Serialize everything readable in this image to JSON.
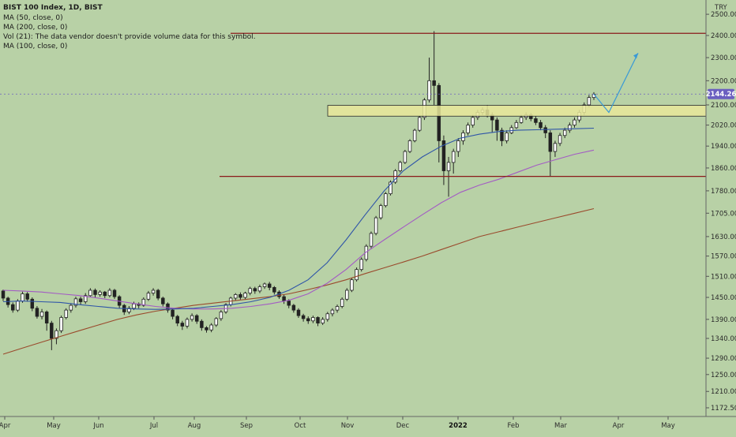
{
  "legend": {
    "symbol": "BIST 100 Index, 1D, BIST",
    "ma50": "MA (50, close, 0)",
    "ma200": "MA (200, close, 0)",
    "vol": "Vol (21): The data vendor doesn't provide volume data for this symbol.",
    "ma100": "MA (100, close, 0)"
  },
  "currency_label": "TRY",
  "colors": {
    "background": "#b8d1a6",
    "ma50": "#2f55a8",
    "ma100": "#a35bc4",
    "ma200": "#9a4a2c",
    "resistance": "#8b1a1a",
    "zone_fill": "#e8e89a",
    "zone_stroke": "#2a2a2a",
    "projection": "#3a9ad6",
    "price_badge": "#6b5fc0",
    "candle": "#222222"
  },
  "chart_data": {
    "type": "candlestick",
    "title": "BIST 100 Index, 1D, BIST",
    "currency": "TRY",
    "y_ticks": [
      "2500.00",
      "2400.00",
      "2300.00",
      "2200.00",
      "2100.00",
      "2020.00",
      "1940.00",
      "1860.00",
      "1780.00",
      "1705.00",
      "1630.00",
      "1570.00",
      "1510.00",
      "1450.00",
      "1390.00",
      "1340.00",
      "1290.00",
      "1250.00",
      "1210.00",
      "1172.50"
    ],
    "x_ticks": [
      {
        "label": "Apr",
        "bold": false
      },
      {
        "label": "May",
        "bold": false
      },
      {
        "label": "Jun",
        "bold": false
      },
      {
        "label": "Jul",
        "bold": false
      },
      {
        "label": "Aug",
        "bold": false
      },
      {
        "label": "Sep",
        "bold": false
      },
      {
        "label": "Oct",
        "bold": false
      },
      {
        "label": "Nov",
        "bold": false
      },
      {
        "label": "Dec",
        "bold": false
      },
      {
        "label": "2022",
        "bold": true
      },
      {
        "label": "Feb",
        "bold": false
      },
      {
        "label": "Mar",
        "bold": false
      },
      {
        "label": "Apr",
        "bold": false
      },
      {
        "label": "May",
        "bold": false
      }
    ],
    "last_price": "2144.26",
    "resistance_levels": [
      2410,
      1830
    ],
    "zone": [
      2055,
      2098
    ],
    "projection_points": [
      [
        2144,
        2144
      ],
      [
        2070,
        2070
      ],
      [
        2320,
        2320
      ]
    ],
    "candles": [
      [
        1468,
        1448,
        1472,
        1440
      ],
      [
        1448,
        1430,
        1452,
        1422
      ],
      [
        1430,
        1415,
        1436,
        1408
      ],
      [
        1415,
        1440,
        1445,
        1410
      ],
      [
        1440,
        1460,
        1466,
        1435
      ],
      [
        1460,
        1445,
        1465,
        1438
      ],
      [
        1445,
        1420,
        1450,
        1412
      ],
      [
        1420,
        1398,
        1426,
        1392
      ],
      [
        1398,
        1410,
        1418,
        1390
      ],
      [
        1410,
        1380,
        1414,
        1360
      ],
      [
        1380,
        1340,
        1386,
        1310
      ],
      [
        1340,
        1360,
        1366,
        1325
      ],
      [
        1360,
        1395,
        1400,
        1354
      ],
      [
        1395,
        1415,
        1420,
        1390
      ],
      [
        1415,
        1428,
        1434,
        1408
      ],
      [
        1428,
        1446,
        1452,
        1422
      ],
      [
        1446,
        1438,
        1452,
        1430
      ],
      [
        1438,
        1455,
        1462,
        1432
      ],
      [
        1455,
        1470,
        1476,
        1450
      ],
      [
        1470,
        1458,
        1475,
        1450
      ],
      [
        1458,
        1465,
        1470,
        1452
      ],
      [
        1465,
        1455,
        1468,
        1448
      ],
      [
        1455,
        1470,
        1476,
        1450
      ],
      [
        1470,
        1452,
        1474,
        1446
      ],
      [
        1452,
        1428,
        1456,
        1420
      ],
      [
        1428,
        1410,
        1432,
        1402
      ],
      [
        1410,
        1420,
        1426,
        1404
      ],
      [
        1420,
        1432,
        1438,
        1415
      ],
      [
        1432,
        1428,
        1436,
        1420
      ],
      [
        1428,
        1445,
        1450,
        1424
      ],
      [
        1445,
        1462,
        1468,
        1440
      ],
      [
        1462,
        1470,
        1476,
        1455
      ],
      [
        1470,
        1448,
        1474,
        1442
      ],
      [
        1448,
        1432,
        1452,
        1425
      ],
      [
        1432,
        1415,
        1436,
        1408
      ],
      [
        1415,
        1398,
        1420,
        1390
      ],
      [
        1398,
        1380,
        1402,
        1372
      ],
      [
        1380,
        1372,
        1386,
        1362
      ],
      [
        1372,
        1390,
        1395,
        1366
      ],
      [
        1390,
        1400,
        1406,
        1384
      ],
      [
        1400,
        1385,
        1404,
        1378
      ],
      [
        1385,
        1368,
        1390,
        1360
      ],
      [
        1368,
        1362,
        1372,
        1355
      ],
      [
        1362,
        1375,
        1380,
        1356
      ],
      [
        1375,
        1392,
        1396,
        1370
      ],
      [
        1392,
        1410,
        1415,
        1386
      ],
      [
        1410,
        1430,
        1434,
        1405
      ],
      [
        1430,
        1448,
        1452,
        1425
      ],
      [
        1448,
        1458,
        1462,
        1442
      ],
      [
        1458,
        1450,
        1464,
        1444
      ],
      [
        1450,
        1462,
        1466,
        1445
      ],
      [
        1462,
        1475,
        1480,
        1456
      ],
      [
        1475,
        1468,
        1480,
        1460
      ],
      [
        1468,
        1480,
        1486,
        1462
      ],
      [
        1480,
        1488,
        1492,
        1474
      ],
      [
        1488,
        1478,
        1494,
        1470
      ],
      [
        1478,
        1465,
        1482,
        1458
      ],
      [
        1465,
        1452,
        1470,
        1446
      ],
      [
        1452,
        1440,
        1458,
        1432
      ],
      [
        1440,
        1428,
        1445,
        1420
      ],
      [
        1428,
        1415,
        1432,
        1408
      ],
      [
        1415,
        1400,
        1420,
        1394
      ],
      [
        1400,
        1392,
        1405,
        1384
      ],
      [
        1392,
        1386,
        1398,
        1378
      ],
      [
        1386,
        1395,
        1400,
        1380
      ],
      [
        1395,
        1380,
        1398,
        1372
      ],
      [
        1380,
        1390,
        1396,
        1375
      ],
      [
        1390,
        1405,
        1410,
        1384
      ],
      [
        1405,
        1415,
        1420,
        1398
      ],
      [
        1415,
        1425,
        1430,
        1408
      ],
      [
        1425,
        1445,
        1450,
        1420
      ],
      [
        1445,
        1470,
        1476,
        1440
      ],
      [
        1470,
        1500,
        1506,
        1465
      ],
      [
        1500,
        1530,
        1536,
        1495
      ],
      [
        1530,
        1560,
        1566,
        1524
      ],
      [
        1560,
        1600,
        1606,
        1554
      ],
      [
        1600,
        1640,
        1646,
        1594
      ],
      [
        1640,
        1690,
        1696,
        1634
      ],
      [
        1690,
        1730,
        1736,
        1684
      ],
      [
        1730,
        1770,
        1776,
        1724
      ],
      [
        1770,
        1810,
        1816,
        1764
      ],
      [
        1810,
        1850,
        1856,
        1804
      ],
      [
        1850,
        1880,
        1886,
        1844
      ],
      [
        1880,
        1920,
        1926,
        1874
      ],
      [
        1920,
        1960,
        1966,
        1914
      ],
      [
        1960,
        2000,
        2006,
        1954
      ],
      [
        2000,
        2050,
        2056,
        1994
      ],
      [
        2050,
        2120,
        2128,
        2040
      ],
      [
        2120,
        2200,
        2300,
        2110
      ],
      [
        2200,
        2180,
        2420,
        2100
      ],
      [
        2180,
        1960,
        2190,
        1880
      ],
      [
        1960,
        1850,
        1980,
        1800
      ],
      [
        1850,
        1880,
        1900,
        1760
      ],
      [
        1880,
        1920,
        1930,
        1840
      ],
      [
        1920,
        1960,
        1970,
        1900
      ],
      [
        1960,
        1990,
        2000,
        1945
      ],
      [
        1990,
        2020,
        2030,
        1980
      ],
      [
        2020,
        2050,
        2060,
        2010
      ],
      [
        2050,
        2070,
        2080,
        2040
      ],
      [
        2070,
        2080,
        2090,
        2060
      ],
      [
        2080,
        2060,
        2100,
        2050
      ],
      [
        2060,
        2040,
        2070,
        1990
      ],
      [
        2040,
        2000,
        2050,
        1960
      ],
      [
        2000,
        1960,
        2010,
        1940
      ],
      [
        1960,
        1990,
        2000,
        1950
      ],
      [
        1990,
        2010,
        2020,
        1985
      ],
      [
        2010,
        2030,
        2040,
        2005
      ],
      [
        2030,
        2050,
        2060,
        2025
      ],
      [
        2050,
        2060,
        2070,
        2040
      ],
      [
        2060,
        2045,
        2068,
        2035
      ],
      [
        2045,
        2030,
        2055,
        2020
      ],
      [
        2030,
        2010,
        2040,
        2000
      ],
      [
        2010,
        1990,
        2020,
        1970
      ],
      [
        1990,
        1920,
        2000,
        1830
      ],
      [
        1920,
        1950,
        1960,
        1900
      ],
      [
        1950,
        1980,
        1990,
        1940
      ],
      [
        1980,
        2000,
        2010,
        1970
      ],
      [
        2000,
        2020,
        2030,
        1990
      ],
      [
        2020,
        2040,
        2050,
        2010
      ],
      [
        2040,
        2070,
        2080,
        2030
      ],
      [
        2070,
        2100,
        2110,
        2060
      ],
      [
        2100,
        2130,
        2140,
        2090
      ],
      [
        2130,
        2144,
        2152,
        2120
      ]
    ],
    "ma50": [
      1438,
      1440,
      1438,
      1436,
      1430,
      1425,
      1420,
      1418,
      1417,
      1418,
      1420,
      1425,
      1430,
      1438,
      1450,
      1470,
      1500,
      1550,
      1620,
      1700,
      1780,
      1850,
      1900,
      1940,
      1970,
      1985,
      1995,
      2000,
      2002,
      2004,
      2006,
      2008
    ],
    "ma100": [
      1470,
      1468,
      1465,
      1460,
      1455,
      1448,
      1440,
      1432,
      1425,
      1420,
      1418,
      1418,
      1420,
      1425,
      1432,
      1442,
      1460,
      1490,
      1530,
      1580,
      1620,
      1660,
      1700,
      1740,
      1775,
      1800,
      1820,
      1845,
      1870,
      1890,
      1910,
      1925
    ],
    "ma200": [
      1300,
      1315,
      1330,
      1345,
      1360,
      1375,
      1390,
      1402,
      1412,
      1420,
      1428,
      1434,
      1440,
      1446,
      1452,
      1460,
      1472,
      1485,
      1500,
      1518,
      1535,
      1552,
      1570,
      1590,
      1610,
      1630,
      1645,
      1660,
      1675,
      1690,
      1705,
      1720
    ],
    "y_scale": "log"
  }
}
